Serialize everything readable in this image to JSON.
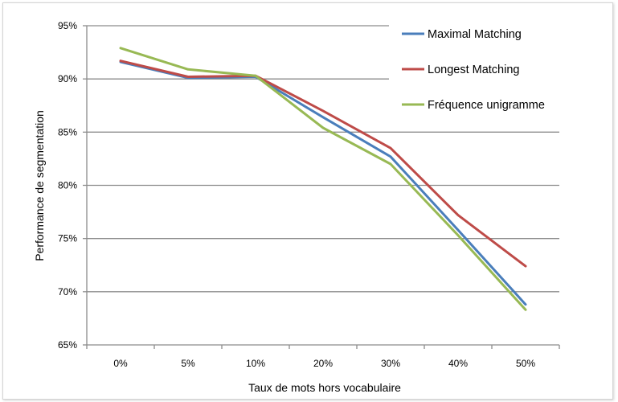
{
  "chart_data": {
    "type": "line",
    "title": "",
    "xlabel": "Taux de mots hors vocabulaire",
    "ylabel": "Performance de segmentation",
    "categories": [
      "0%",
      "5%",
      "10%",
      "20%",
      "30%",
      "40%",
      "50%"
    ],
    "ylim": [
      65,
      95
    ],
    "yticks": [
      95,
      90,
      85,
      80,
      75,
      70,
      65
    ],
    "ytick_labels": [
      "95%",
      "90%",
      "85%",
      "80%",
      "75%",
      "70%",
      "65%"
    ],
    "grid": "horizontal",
    "legend_position": "top-right",
    "series": [
      {
        "name": "Maximal Matching",
        "color": "#4a7ebb",
        "values": [
          91.6,
          90.1,
          90.2,
          86.4,
          82.7,
          75.8,
          68.8
        ]
      },
      {
        "name": "Longest Matching",
        "color": "#be4b48",
        "values": [
          91.7,
          90.2,
          90.3,
          87.0,
          83.5,
          77.2,
          72.4
        ]
      },
      {
        "name": "Fréquence unigramme",
        "color": "#98b954",
        "values": [
          92.9,
          90.9,
          90.3,
          85.4,
          82.0,
          75.3,
          68.3
        ]
      }
    ]
  }
}
